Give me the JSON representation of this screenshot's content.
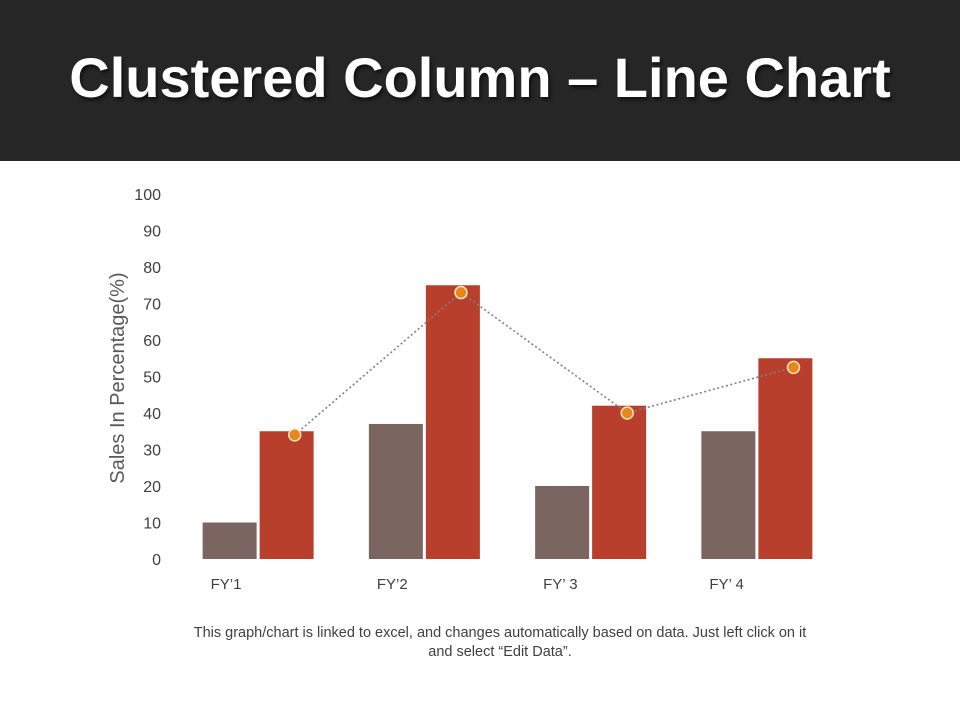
{
  "slide": {
    "title": "Clustered Column – Line Chart",
    "footnote": "This graph/chart is linked to excel, and changes automatically based on data. Just left click on it and select “Edit Data”."
  },
  "chart_data": {
    "type": "bar",
    "categories": [
      "FY’1",
      "FY’2",
      "FY’ 3",
      "FY’ 4"
    ],
    "series": [
      {
        "type": "bar",
        "values": [
          10,
          37,
          20,
          35
        ],
        "color": "#7b6561"
      },
      {
        "type": "bar",
        "values": [
          35,
          75,
          42,
          55
        ],
        "color": "#b83f2c"
      },
      {
        "type": "line",
        "values": [
          34,
          73,
          40,
          52.5
        ],
        "color": "#808080",
        "marker_color": "#e8881a",
        "line_style": "dotted"
      }
    ],
    "ylabel": "Sales In Percentage(%)",
    "xlabel": "",
    "ylim": [
      0,
      100
    ],
    "yticks": [
      0,
      10,
      20,
      30,
      40,
      50,
      60,
      70,
      80,
      90,
      100
    ],
    "grid": false,
    "legend": "none"
  }
}
